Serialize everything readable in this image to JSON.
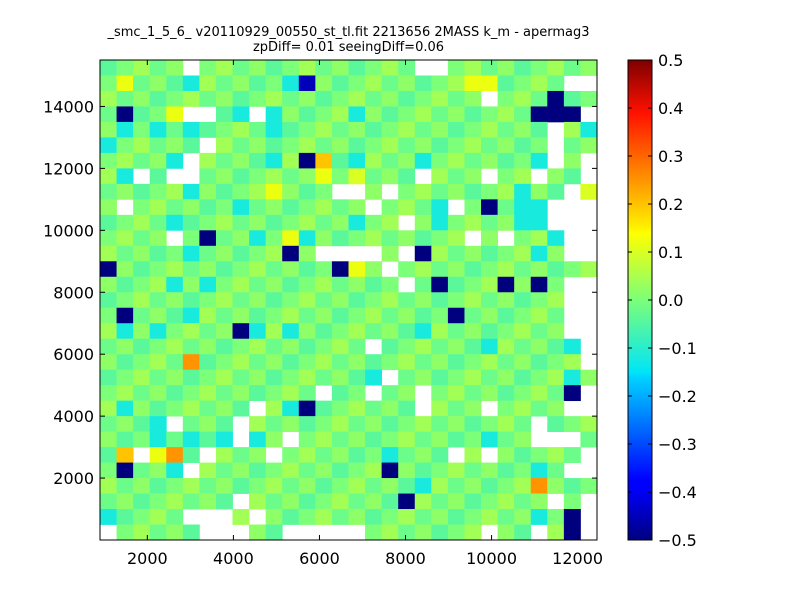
{
  "chart_data": {
    "type": "heatmap",
    "title_line1": "_smc_1_5_6_ v20110929_00550_st_tl.fit 2213656 2MASS k_m - apermag3",
    "title_line2": "zpDiff= 0.01 seeingDiff=0.06",
    "xlim": [
      900,
      12450
    ],
    "ylim": [
      0,
      15500
    ],
    "x_ticks": [
      {
        "value": 2000,
        "label": "2000"
      },
      {
        "value": 4000,
        "label": "4000"
      },
      {
        "value": 6000,
        "label": "6000"
      },
      {
        "value": 8000,
        "label": "8000"
      },
      {
        "value": 10000,
        "label": "10000"
      },
      {
        "value": 12000,
        "label": "12000"
      }
    ],
    "y_ticks": [
      {
        "value": 2000,
        "label": "2000"
      },
      {
        "value": 4000,
        "label": "4000"
      },
      {
        "value": 6000,
        "label": "6000"
      },
      {
        "value": 8000,
        "label": "8000"
      },
      {
        "value": 10000,
        "label": "10000"
      },
      {
        "value": 12000,
        "label": "12000"
      },
      {
        "value": 14000,
        "label": "14000"
      }
    ],
    "colorbar": {
      "colormap": "jet",
      "vmin": -0.5,
      "vmax": 0.5,
      "ticks": [
        {
          "value": 0.5,
          "label": "0.5"
        },
        {
          "value": 0.4,
          "label": "0.4"
        },
        {
          "value": 0.3,
          "label": "0.3"
        },
        {
          "value": 0.2,
          "label": "0.2"
        },
        {
          "value": 0.1,
          "label": "0.1"
        },
        {
          "value": 0.0,
          "label": "0.0"
        },
        {
          "value": -0.1,
          "label": "−0.1"
        },
        {
          "value": -0.2,
          "label": "−0.2"
        },
        {
          "value": -0.3,
          "label": "−0.3"
        },
        {
          "value": -0.4,
          "label": "−0.4"
        },
        {
          "value": -0.5,
          "label": "−0.5"
        }
      ]
    },
    "grid": {
      "nx": 30,
      "ny": 31,
      "x_start": 900,
      "x_step": 385,
      "y_start": 0,
      "y_step": 500,
      "rows_top_to_bottom": [
        "00000.0000000000000..000000000",
        "02000-00000-P000000000220000..",
        "000000000000000000000005000X00",
        "0X002..0-.-0000-0000000000XXX.",
        "0-0-0-0000-0000000000000000.0-",
        "-00000.00000000000000000000.00",
        "0000-.0000-0X40-000-000000-.0.",
        "0-.0..0000000201000.000.00.00.",
        "00000-00002000..0.0000000-00.1",
        "0.000000-0000000.000-.0X0--...",
        "0000-0000000000-00.0-0000--...",
        "0000.0X00-02-000000000.0.00-..",
        "00000-00000X0....0.X000000-0..",
        "X0000000000000X20.000000000000",
        "0000-0-00000000000.0X000X0X0..",
        "0000000000000000000000000000..",
        "0X000-000000000000000X000000..",
        "0-0-0000X-0-0000000-00000000..",
        "0000000000000000.000000-0000-.",
        "00000300000000000000000000000.",
        "0000000000000000-.0000000000-0",
        "0000000000000.00.00.00000000X.",
        "0-0000000.0-X000000.000.0000..",
        "000-.000.00000000000000000.000",
        "000-0-0-.-0.00000000000-00...0",
        "04.230.000.000000-000.0.00000.",
        "0X00-.00000000000X00000000-0..",
        "0000000000000000000-0000003000",
        "00000000.000000000X00000000.0.",
        "-0000...0.0000000000000000-0X.",
        ".00000...00.....0000000.00.0X."
      ]
    },
    "cell_values": {
      ".": null,
      "0": 0.0,
      "1": 0.1,
      "2": 0.12,
      "3": 0.25,
      "4": 0.2,
      "P": -0.45,
      "X": -0.5,
      "-": -0.12
    }
  }
}
